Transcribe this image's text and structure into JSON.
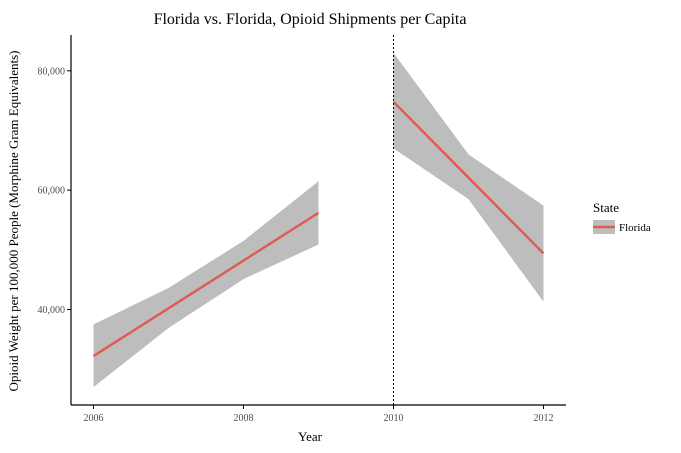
{
  "chart_data": {
    "type": "line",
    "title": "Florida vs. Florida, Opioid Shipments per Capita",
    "xlabel": "Year",
    "ylabel": "Opioid Weight per 100,000 People (Morphine Gram Equivalents)",
    "xlim": [
      2005.7,
      2012.3
    ],
    "ylim": [
      24000,
      86000
    ],
    "x_ticks": [
      2006,
      2008,
      2010,
      2012
    ],
    "x_tick_labels": [
      "2006",
      "2008",
      "2010",
      "2012"
    ],
    "y_ticks": [
      40000,
      60000,
      80000
    ],
    "y_tick_labels": [
      "40,000",
      "60,000",
      "80,000"
    ],
    "grid": false,
    "vline": {
      "x": 2010,
      "style": "dotted"
    },
    "legend": {
      "title": "State",
      "position": "right",
      "entries": [
        "Florida"
      ]
    },
    "colors": {
      "line": "#e05a4f",
      "band": "#bdbdbd"
    },
    "series": [
      {
        "name": "Florida",
        "segments": [
          {
            "x": [
              2006,
              2007,
              2008,
              2009
            ],
            "y": [
              32200,
              40200,
              48200,
              56200
            ],
            "lower": [
              27000,
              36900,
              45100,
              50900
            ],
            "upper": [
              37500,
              43600,
              51500,
              61500
            ]
          },
          {
            "x": [
              2010,
              2011,
              2012
            ],
            "y": [
              74800,
              62100,
              49400
            ],
            "lower": [
              67000,
              58500,
              41300
            ],
            "upper": [
              83000,
              66000,
              57400
            ]
          }
        ]
      }
    ]
  }
}
